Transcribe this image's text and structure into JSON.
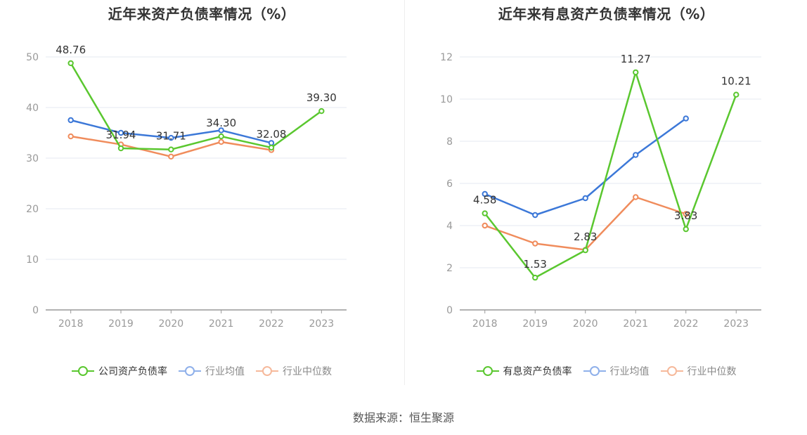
{
  "charts": [
    {
      "title": "近年来资产负债率情况（%）",
      "legend": [
        "公司资产负债率",
        "行业均值",
        "行业中位数"
      ]
    },
    {
      "title": "近年来有息资产负债率情况（%）",
      "legend": [
        "有息资产负债率",
        "行业均值",
        "行业中位数"
      ]
    }
  ],
  "source": "数据来源：恒生聚源",
  "colors": {
    "company": "#5ac72f",
    "mean": "#3c78d8",
    "median": "#f08c5c",
    "grid": "#e6e9f2",
    "axis": "#999999"
  },
  "chart_data": [
    {
      "type": "line",
      "title": "近年来资产负债率情况（%）",
      "categories": [
        "2018",
        "2019",
        "2020",
        "2021",
        "2022",
        "2023"
      ],
      "ylim": [
        0,
        50
      ],
      "yticks": [
        0,
        10,
        20,
        30,
        40,
        50
      ],
      "series": [
        {
          "name": "公司资产负债率",
          "key": "company",
          "values": [
            48.76,
            31.94,
            31.71,
            34.3,
            32.08,
            39.3
          ],
          "labels": [
            "48.76",
            "31.94",
            "31.71",
            "34.30",
            "32.08",
            "39.30"
          ]
        },
        {
          "name": "行业均值",
          "key": "mean",
          "values": [
            37.5,
            35.0,
            34.0,
            35.5,
            33.0,
            null
          ]
        },
        {
          "name": "行业中位数",
          "key": "median",
          "values": [
            34.3,
            32.7,
            30.3,
            33.2,
            31.6,
            null
          ]
        }
      ]
    },
    {
      "type": "line",
      "title": "近年来有息资产负债率情况（%）",
      "categories": [
        "2018",
        "2019",
        "2020",
        "2021",
        "2022",
        "2023"
      ],
      "ylim": [
        0,
        12
      ],
      "yticks": [
        0,
        2,
        4,
        6,
        8,
        10,
        12
      ],
      "series": [
        {
          "name": "有息资产负债率",
          "key": "company",
          "values": [
            4.58,
            1.53,
            2.83,
            11.27,
            3.83,
            10.21
          ],
          "labels": [
            "4.58",
            "1.53",
            "2.83",
            "11.27",
            "3.83",
            "10.21"
          ]
        },
        {
          "name": "行业均值",
          "key": "mean",
          "values": [
            5.5,
            4.5,
            5.3,
            7.35,
            9.08,
            null
          ]
        },
        {
          "name": "行业中位数",
          "key": "median",
          "values": [
            4.0,
            3.15,
            2.85,
            5.35,
            4.55,
            null
          ]
        }
      ]
    }
  ]
}
